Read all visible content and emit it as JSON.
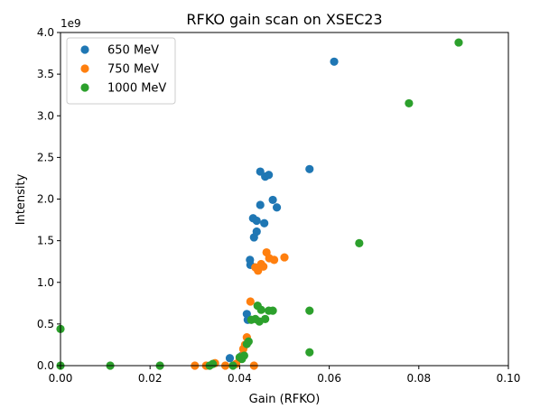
{
  "chart_data": {
    "type": "scatter",
    "title": "RFKO gain scan on XSEC23",
    "xlabel": "Gain (RFKO)",
    "ylabel": "Intensity",
    "y_scale_label": "1e9",
    "xlim": [
      0,
      0.1
    ],
    "ylim": [
      0,
      4.0
    ],
    "x_ticks": [
      "0.00",
      "0.02",
      "0.04",
      "0.06",
      "0.08",
      "0.10"
    ],
    "y_ticks": [
      "0.0",
      "0.5",
      "1.0",
      "1.5",
      "2.0",
      "2.5",
      "3.0",
      "3.5",
      "4.0"
    ],
    "x_tick_values": [
      0,
      0.02,
      0.04,
      0.06,
      0.08,
      0.1
    ],
    "y_tick_values": [
      0,
      0.5,
      1.0,
      1.5,
      2.0,
      2.5,
      3.0,
      3.5,
      4.0
    ],
    "grid": false,
    "legend_position": "top-left",
    "series": [
      {
        "name": "650 MeV",
        "color": "#1f77b4",
        "points": [
          [
            0.0378,
            0.09
          ],
          [
            0.0405,
            0.12
          ],
          [
            0.0416,
            0.62
          ],
          [
            0.0418,
            0.55
          ],
          [
            0.0423,
            1.27
          ],
          [
            0.0424,
            1.21
          ],
          [
            0.043,
            1.77
          ],
          [
            0.0432,
            1.54
          ],
          [
            0.0438,
            1.61
          ],
          [
            0.0438,
            1.74
          ],
          [
            0.0446,
            1.93
          ],
          [
            0.0446,
            2.33
          ],
          [
            0.0455,
            1.71
          ],
          [
            0.0457,
            2.27
          ],
          [
            0.0465,
            2.29
          ],
          [
            0.0474,
            1.99
          ],
          [
            0.0483,
            1.9
          ],
          [
            0.0556,
            2.36
          ],
          [
            0.0611,
            3.65
          ]
        ]
      },
      {
        "name": "750 MeV",
        "color": "#ff7f0e",
        "points": [
          [
            0.03,
            0.0
          ],
          [
            0.0325,
            0.0
          ],
          [
            0.0345,
            0.03
          ],
          [
            0.0368,
            0.0
          ],
          [
            0.0392,
            0.02
          ],
          [
            0.04,
            0.08
          ],
          [
            0.0404,
            0.11
          ],
          [
            0.0408,
            0.2
          ],
          [
            0.0412,
            0.25
          ],
          [
            0.0416,
            0.34
          ],
          [
            0.0424,
            0.77
          ],
          [
            0.0432,
            0.0
          ],
          [
            0.0435,
            1.18
          ],
          [
            0.0441,
            1.14
          ],
          [
            0.0448,
            1.22
          ],
          [
            0.0453,
            1.19
          ],
          [
            0.046,
            1.36
          ],
          [
            0.0466,
            1.29
          ],
          [
            0.0477,
            1.27
          ],
          [
            0.05,
            1.3
          ]
        ]
      },
      {
        "name": "1000 MeV",
        "color": "#2ca02c",
        "points": [
          [
            0.0,
            0.44
          ],
          [
            0.0,
            0.0
          ],
          [
            0.0111,
            0.0
          ],
          [
            0.0222,
            0.0
          ],
          [
            0.0333,
            0.0
          ],
          [
            0.034,
            0.02
          ],
          [
            0.0385,
            0.0
          ],
          [
            0.04,
            0.1
          ],
          [
            0.0405,
            0.08
          ],
          [
            0.041,
            0.12
          ],
          [
            0.0416,
            0.26
          ],
          [
            0.042,
            0.29
          ],
          [
            0.0426,
            0.55
          ],
          [
            0.0435,
            0.56
          ],
          [
            0.044,
            0.72
          ],
          [
            0.0444,
            0.53
          ],
          [
            0.0448,
            0.67
          ],
          [
            0.0457,
            0.56
          ],
          [
            0.0465,
            0.66
          ],
          [
            0.0474,
            0.66
          ],
          [
            0.0556,
            0.66
          ],
          [
            0.0556,
            0.16
          ],
          [
            0.0667,
            1.47
          ],
          [
            0.0778,
            3.15
          ],
          [
            0.0889,
            3.88
          ]
        ]
      }
    ]
  }
}
